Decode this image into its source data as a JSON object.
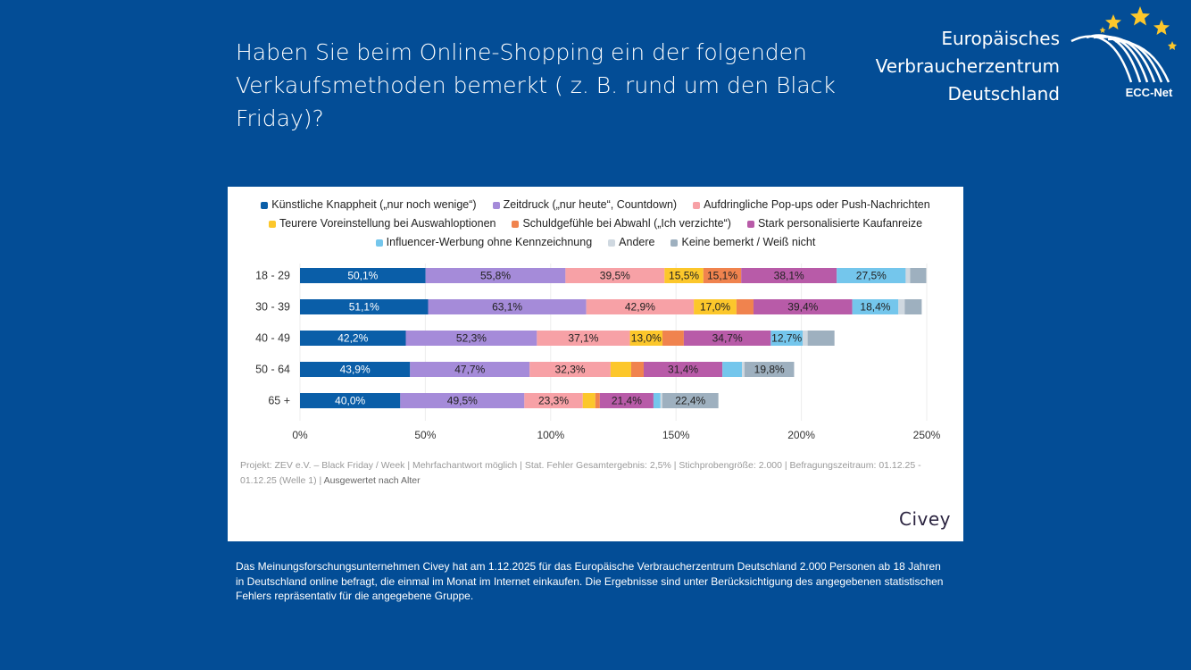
{
  "header": {
    "title": "Haben Sie beim Online-Shopping ein der folgenden Verkaufsmethoden bemerkt ( z. B. rund um den Black Friday)?"
  },
  "logo": {
    "line1": "Europäisches",
    "line2": "Verbraucherzentrum",
    "line3": "Deutschland",
    "network": "ECC-Net"
  },
  "chart_data": {
    "type": "bar",
    "orientation": "horizontal",
    "stacked": true,
    "title": "Haben Sie beim Online-Shopping ein der folgenden Verkaufsmethoden bemerkt ( z. B. rund um den Black Friday)?",
    "xlabel": "",
    "ylabel": "",
    "xlim": [
      0,
      250
    ],
    "x_ticks": [
      "0%",
      "50%",
      "100%",
      "150%",
      "200%",
      "250%"
    ],
    "x_tick_values": [
      0,
      50,
      100,
      150,
      200,
      250
    ],
    "grid": true,
    "legend_position": "top-center",
    "categories": [
      "18 - 29",
      "30 - 39",
      "40 - 49",
      "50 - 64",
      "65 +"
    ],
    "series": [
      {
        "name": "Künstliche Knappheit („nur noch wenige“)",
        "color": "#0a5ea8",
        "label_color": "#ffffff",
        "values": [
          50.1,
          51.1,
          42.2,
          43.9,
          40.0
        ],
        "labels": [
          "50,1%",
          "51,1%",
          "42,2%",
          "43,9%",
          "40,0%"
        ]
      },
      {
        "name": "Zeitdruck („nur heute“, Countdown)",
        "color": "#a58bd9",
        "label_color": "#222222",
        "values": [
          55.8,
          63.1,
          52.3,
          47.7,
          49.5
        ],
        "labels": [
          "55,8%",
          "63,1%",
          "52,3%",
          "47,7%",
          "49,5%"
        ]
      },
      {
        "name": "Aufdringliche Pop-ups oder Push-Nachrichten",
        "color": "#f7a1a6",
        "label_color": "#222222",
        "values": [
          39.5,
          42.9,
          37.1,
          32.3,
          23.3
        ],
        "labels": [
          "39,5%",
          "42,9%",
          "37,1%",
          "32,3%",
          "23,3%"
        ]
      },
      {
        "name": "Teurere Voreinstellung bei Auswahloptionen",
        "color": "#fcc72b",
        "label_color": "#222222",
        "values": [
          15.5,
          17.0,
          13.0,
          8.2,
          5.0
        ],
        "labels": [
          "15,5%",
          "17,0%",
          "13,0%",
          "",
          ""
        ]
      },
      {
        "name": "Schuldgefühle bei Abwahl („Ich verzichte“)",
        "color": "#f0834e",
        "label_color": "#222222",
        "values": [
          15.1,
          6.8,
          8.5,
          5.0,
          1.8
        ],
        "labels": [
          "15,1%",
          "",
          "",
          "",
          ""
        ]
      },
      {
        "name": "Stark personalisierte Kaufanreize",
        "color": "#b85ba8",
        "label_color": "#222222",
        "values": [
          38.1,
          39.4,
          34.7,
          31.4,
          21.4
        ],
        "labels": [
          "38,1%",
          "39,4%",
          "34,7%",
          "31,4%",
          "21,4%"
        ]
      },
      {
        "name": "Influencer-Werbung ohne Kennzeichnung",
        "color": "#74c6ec",
        "label_color": "#222222",
        "values": [
          27.5,
          18.4,
          12.7,
          7.8,
          2.8
        ],
        "labels": [
          "27,5%",
          "18,4%",
          "12,7%",
          "",
          ""
        ]
      },
      {
        "name": "Andere",
        "color": "#cfd8e0",
        "label_color": "#222222",
        "values": [
          1.8,
          2.5,
          2.0,
          1.0,
          0.7
        ],
        "labels": [
          "",
          "",
          "",
          "",
          ""
        ]
      },
      {
        "name": "Keine bemerkt / Weiß nicht",
        "color": "#9eb0bf",
        "label_color": "#222222",
        "values": [
          6.4,
          6.8,
          10.7,
          19.8,
          22.4
        ],
        "labels": [
          "",
          "",
          "",
          "19,8%",
          "22,4%"
        ]
      }
    ]
  },
  "legend_rows": [
    [
      0,
      1,
      2
    ],
    [
      3,
      4,
      5
    ],
    [
      6,
      7,
      8
    ]
  ],
  "meta": {
    "text": "Projekt: ZEV e.V. – Black Friday / Week | Mehrfachantwort möglich | Stat. Fehler Gesamtergebnis: 2,5% | Stichprobengröße: 2.000 | Befragungszeitraum: 01.12.25 - 01.12.25 (Welle 1) | ",
    "evaluated": "Ausgewertet nach Alter"
  },
  "brand": "Civey",
  "footnote": "Das Meinungsforschungsunternehmen Civey hat am 1.12.2025 für das Europäische Verbraucherzentrum Deutschland 2.000 Personen ab 18 Jahren in Deutschland online befragt, die einmal im Monat im Internet einkaufen. Die Ergebnisse sind unter Berücksichtigung des angegebenen statistischen Fehlers repräsentativ für die angegebene Gruppe."
}
